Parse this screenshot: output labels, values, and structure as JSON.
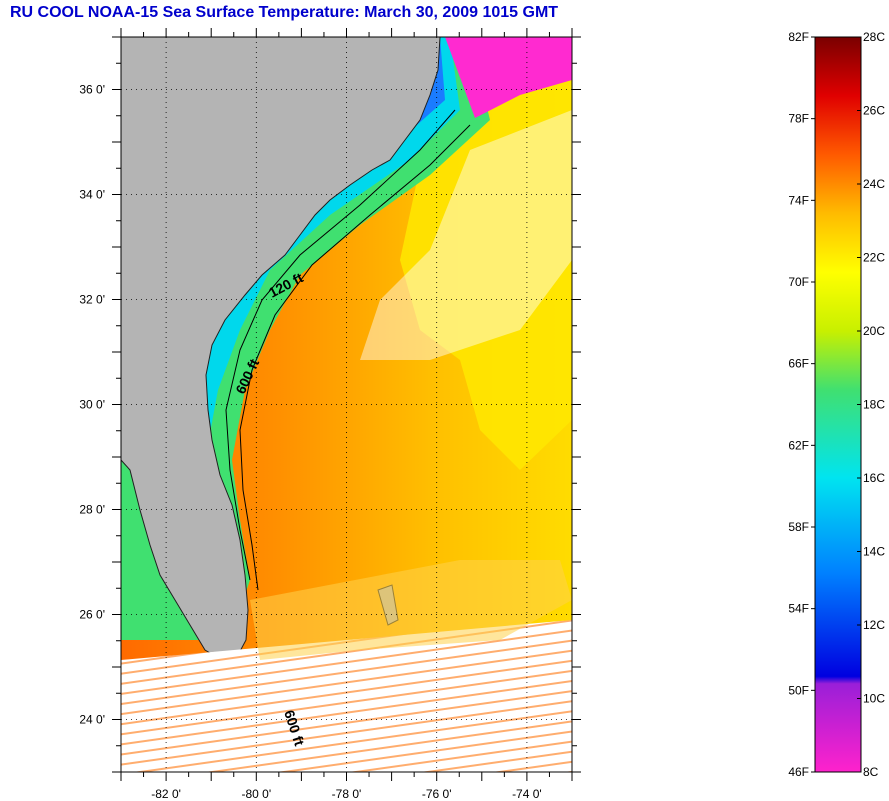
{
  "title": "RU COOL  NOAA-15  Sea Surface Temperature:  March 30, 2009 1015 GMT",
  "map": {
    "lat_labels": [
      "36 0'",
      "34 0'",
      "32 0'",
      "30 0'",
      "28 0'",
      "26 0'",
      "24 0'"
    ],
    "lon_labels": [
      "-82 0'",
      "-80 0'",
      "-78 0'",
      "-76 0'",
      "-74 0'"
    ],
    "lat_range": [
      23,
      37
    ],
    "lon_range": [
      -83,
      -73
    ],
    "contour_labels": [
      "120 ft",
      "600 ft",
      "600 ft"
    ]
  },
  "colorbar": {
    "fahrenheit_labels": [
      "82F",
      "78F",
      "74F",
      "70F",
      "66F",
      "62F",
      "58F",
      "54F",
      "50F",
      "46F"
    ],
    "celsius_labels": [
      "28C",
      "26C",
      "24C",
      "22C",
      "20C",
      "18C",
      "16C",
      "14C",
      "12C",
      "10C",
      "8C"
    ],
    "range_c": [
      8,
      28
    ]
  }
}
